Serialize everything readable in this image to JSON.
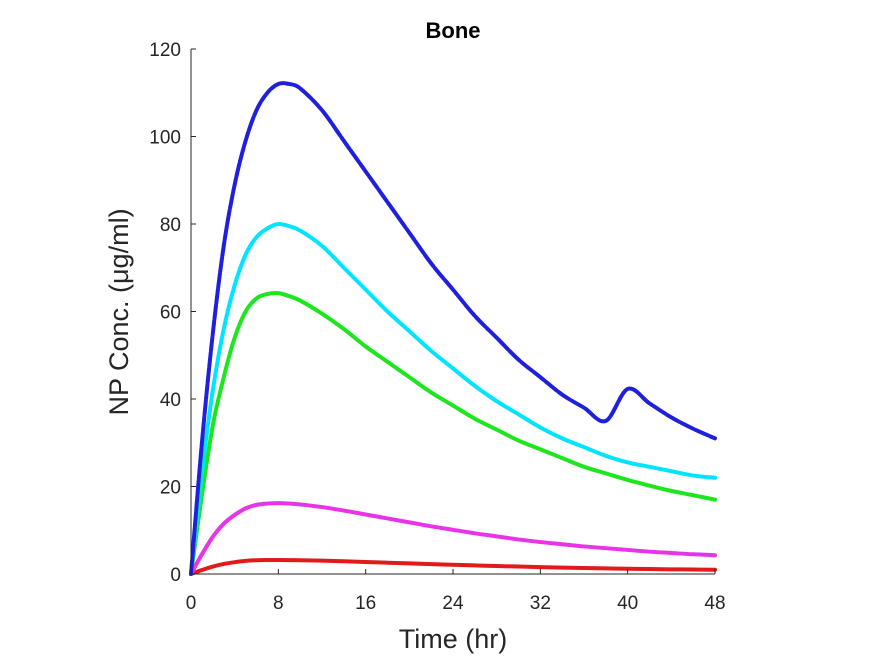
{
  "chart_data": {
    "type": "line",
    "title": "Bone",
    "xlabel": "Time (hr)",
    "ylabel": "NP Conc. (μg/ml)",
    "xlim": [
      0,
      48
    ],
    "ylim": [
      0,
      120
    ],
    "x_ticks": [
      "0",
      "8",
      "16",
      "24",
      "32",
      "40",
      "48"
    ],
    "y_ticks": [
      "0",
      "20",
      "40",
      "60",
      "80",
      "100",
      "120"
    ],
    "grid": false,
    "legend": "none",
    "x": [
      0,
      1,
      2,
      3,
      4,
      5,
      6,
      7,
      8,
      9,
      10,
      12,
      14,
      16,
      18,
      20,
      22,
      24,
      26,
      28,
      30,
      32,
      34,
      36,
      38,
      40,
      42,
      44,
      46,
      48
    ],
    "series": [
      {
        "color": "#1f1fdc",
        "dashed": true,
        "values": [
          0,
          30,
          55,
          75,
          89,
          99,
          106,
          110,
          112,
          112,
          111,
          106,
          99,
          92,
          85,
          78,
          71,
          65,
          59,
          54,
          49,
          45,
          41,
          38,
          35,
          42.3,
          39,
          35.8,
          33.2,
          31
        ]
      },
      {
        "color": "#00e5ff",
        "dashed": false,
        "values": [
          0,
          23,
          42,
          56,
          66,
          73,
          77,
          79,
          80,
          79.5,
          78.5,
          75,
          70,
          65,
          60,
          55.5,
          51,
          47,
          43,
          39.5,
          36.5,
          33.5,
          31,
          29,
          27,
          25.5,
          24.5,
          23.5,
          22.5,
          22
        ]
      },
      {
        "color": "#1ee61e",
        "dashed": false,
        "values": [
          0,
          18,
          34,
          45,
          54,
          60,
          63,
          64,
          64.2,
          63.5,
          62.5,
          59.5,
          56,
          52,
          48.5,
          45,
          41.5,
          38.5,
          35.5,
          33,
          30.5,
          28.5,
          26.5,
          24.5,
          23,
          21.5,
          20.2,
          19,
          18,
          17
        ]
      },
      {
        "color": "#e833e8",
        "dashed": false,
        "values": [
          0,
          4.5,
          8.5,
          11.5,
          13.5,
          15,
          15.8,
          16.1,
          16.2,
          16.1,
          15.9,
          15.3,
          14.5,
          13.6,
          12.7,
          11.8,
          10.9,
          10.1,
          9.3,
          8.6,
          7.9,
          7.3,
          6.8,
          6.3,
          5.9,
          5.5,
          5.1,
          4.8,
          4.5,
          4.3
        ]
      },
      {
        "color": "#e11b1b",
        "dashed": false,
        "values": [
          0,
          0.9,
          1.7,
          2.3,
          2.7,
          3.0,
          3.15,
          3.2,
          3.2,
          3.18,
          3.14,
          3.05,
          2.9,
          2.75,
          2.58,
          2.42,
          2.26,
          2.1,
          1.96,
          1.82,
          1.7,
          1.58,
          1.47,
          1.37,
          1.28,
          1.2,
          1.13,
          1.07,
          1.02,
          0.97
        ]
      }
    ]
  }
}
